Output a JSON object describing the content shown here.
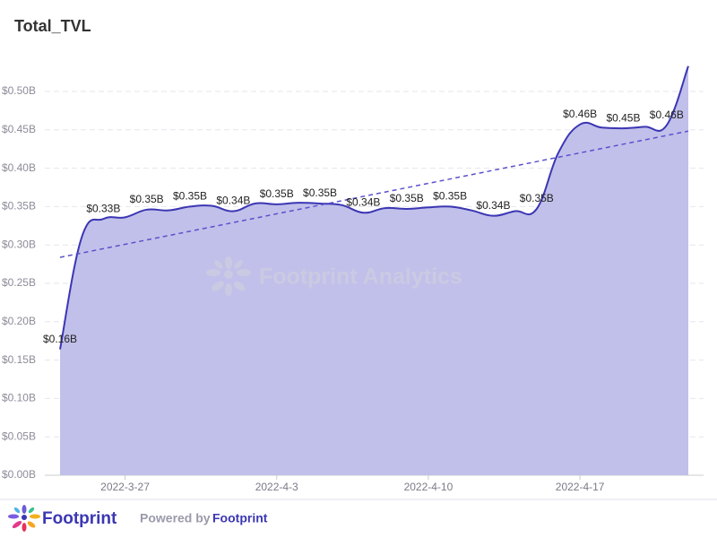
{
  "chart_data": {
    "type": "line",
    "title": "Total_TVL",
    "categories": [
      null,
      null,
      null,
      "2022-3-27",
      null,
      null,
      null,
      null,
      null,
      null,
      "2022-4-3",
      null,
      null,
      null,
      null,
      null,
      null,
      "2022-4-10",
      null,
      null,
      null,
      null,
      null,
      null,
      "2022-4-17",
      null,
      null,
      null,
      null,
      null
    ],
    "series": [
      {
        "name": "Total_TVL",
        "color": "#3b36b3",
        "fill": "#c1c0ea",
        "values": [
          0.164,
          0.31,
          0.334,
          0.336,
          0.346,
          0.345,
          0.35,
          0.351,
          0.344,
          0.354,
          0.353,
          0.355,
          0.354,
          0.352,
          0.342,
          0.348,
          0.347,
          0.349,
          0.35,
          0.345,
          0.338,
          0.344,
          0.347,
          0.42,
          0.457,
          0.453,
          0.452,
          0.454,
          0.456,
          0.533
        ],
        "value_labels": [
          "$0.16B",
          null,
          "$0.33B",
          null,
          "$0.35B",
          null,
          "$0.35B",
          null,
          "$0.34B",
          null,
          "$0.35B",
          null,
          "$0.35B",
          null,
          "$0.34B",
          null,
          "$0.35B",
          null,
          "$0.35B",
          null,
          "$0.34B",
          null,
          "$0.35B",
          null,
          "$0.46B",
          null,
          "$0.45B",
          null,
          "$0.46B",
          null
        ]
      }
    ],
    "trendline": true,
    "trend_color": "#5a52cc",
    "ylim": [
      0,
      0.5
    ],
    "yticks": [
      {
        "value": 0,
        "label": "$0.00B"
      },
      {
        "value": 0.05,
        "label": "$0.05B"
      },
      {
        "value": 0.1,
        "label": "$0.10B"
      },
      {
        "value": 0.15,
        "label": "$0.15B"
      },
      {
        "value": 0.2,
        "label": "$0.20B"
      },
      {
        "value": 0.25,
        "label": "$0.25B"
      },
      {
        "value": 0.3,
        "label": "$0.30B"
      },
      {
        "value": 0.35,
        "label": "$0.35B"
      },
      {
        "value": 0.4,
        "label": "$0.40B"
      },
      {
        "value": 0.45,
        "label": "$0.45B"
      },
      {
        "value": 0.5,
        "label": "$0.50B"
      }
    ],
    "grid": true,
    "watermark": "Footprint Analytics"
  },
  "footer": {
    "brand": "Footprint",
    "powered_by": "Powered by",
    "powered_brand": "Footprint"
  }
}
